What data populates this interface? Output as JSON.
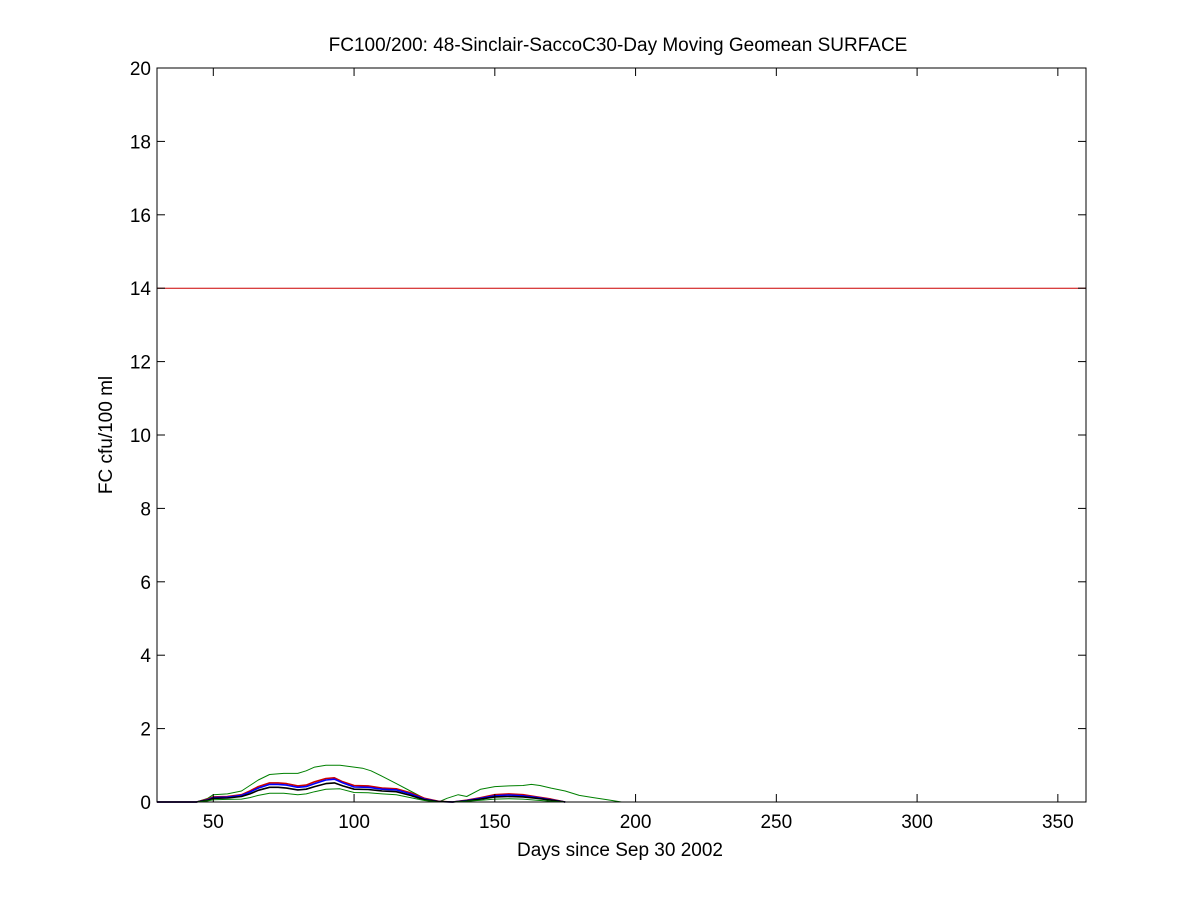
{
  "chart_data": {
    "type": "line",
    "title": "FC100/200: 48-Sinclair-SaccoC30-Day Moving Geomean SURFACE",
    "xlabel": "Days since Sep 30 2002",
    "ylabel": "FC cfu/100 ml",
    "xlim": [
      30,
      360
    ],
    "ylim": [
      0,
      20
    ],
    "xticks": [
      50,
      100,
      150,
      200,
      250,
      300,
      350
    ],
    "yticks": [
      0,
      2,
      4,
      6,
      8,
      10,
      12,
      14,
      16,
      18,
      20
    ],
    "grid": false,
    "legend": "none",
    "reference_lines": [
      {
        "y": 14,
        "color": "#cc0000"
      }
    ],
    "series": [
      {
        "color": "#008000",
        "x": [
          30,
          44,
          48,
          50,
          55,
          60,
          63,
          66,
          70,
          75,
          80,
          83,
          86,
          90,
          95,
          100,
          103,
          106,
          110,
          115,
          120,
          125,
          130,
          133,
          137,
          140,
          145,
          150,
          155,
          160,
          163,
          166,
          170,
          175,
          180,
          185,
          190,
          195
        ],
        "y": [
          0,
          0,
          0.1,
          0.2,
          0.22,
          0.3,
          0.45,
          0.6,
          0.75,
          0.78,
          0.78,
          0.85,
          0.95,
          1.0,
          1.0,
          0.95,
          0.92,
          0.85,
          0.7,
          0.5,
          0.3,
          0.1,
          0,
          0.1,
          0.2,
          0.15,
          0.35,
          0.42,
          0.44,
          0.45,
          0.48,
          0.45,
          0.38,
          0.3,
          0.18,
          0.12,
          0.06,
          0
        ]
      },
      {
        "color": "#cc0000",
        "x": [
          30,
          44,
          48,
          50,
          55,
          60,
          63,
          66,
          70,
          73,
          76,
          80,
          83,
          86,
          90,
          93,
          96,
          100,
          105,
          110,
          115,
          120,
          125,
          130,
          135,
          140,
          145,
          150,
          155,
          160,
          165,
          170,
          175
        ],
        "y": [
          0,
          0,
          0.08,
          0.14,
          0.15,
          0.2,
          0.3,
          0.42,
          0.52,
          0.52,
          0.5,
          0.44,
          0.46,
          0.55,
          0.64,
          0.66,
          0.55,
          0.45,
          0.44,
          0.38,
          0.36,
          0.25,
          0.1,
          0.02,
          0,
          0.05,
          0.12,
          0.2,
          0.22,
          0.2,
          0.14,
          0.08,
          0
        ]
      },
      {
        "color": "#0000ff",
        "x": [
          30,
          44,
          48,
          50,
          55,
          60,
          63,
          66,
          70,
          73,
          76,
          80,
          83,
          86,
          90,
          93,
          96,
          100,
          105,
          110,
          115,
          120,
          125,
          130,
          135,
          140,
          145,
          150,
          155,
          160,
          165,
          170,
          175
        ],
        "y": [
          0,
          0,
          0.06,
          0.12,
          0.13,
          0.18,
          0.27,
          0.38,
          0.48,
          0.48,
          0.46,
          0.4,
          0.42,
          0.5,
          0.6,
          0.62,
          0.52,
          0.41,
          0.4,
          0.35,
          0.33,
          0.22,
          0.08,
          0.01,
          0,
          0.04,
          0.1,
          0.17,
          0.19,
          0.17,
          0.12,
          0.06,
          0
        ]
      },
      {
        "color": "#000000",
        "x": [
          30,
          44,
          48,
          50,
          55,
          60,
          63,
          66,
          70,
          73,
          76,
          80,
          83,
          86,
          90,
          93,
          96,
          100,
          105,
          110,
          115,
          120,
          125,
          130,
          135,
          140,
          145,
          150,
          155,
          160,
          165,
          170,
          175
        ],
        "y": [
          0,
          0,
          0.05,
          0.1,
          0.11,
          0.15,
          0.22,
          0.32,
          0.4,
          0.4,
          0.38,
          0.33,
          0.35,
          0.42,
          0.5,
          0.52,
          0.44,
          0.35,
          0.34,
          0.3,
          0.28,
          0.18,
          0.06,
          0.01,
          0,
          0.03,
          0.08,
          0.14,
          0.15,
          0.14,
          0.1,
          0.05,
          0
        ]
      },
      {
        "color": "#008000",
        "x": [
          30,
          44,
          48,
          50,
          55,
          60,
          63,
          66,
          70,
          75,
          80,
          83,
          86,
          90,
          95,
          100,
          105,
          110,
          115,
          120,
          125,
          130,
          135,
          140,
          145,
          150,
          155,
          160,
          165,
          170,
          175
        ],
        "y": [
          0,
          0,
          0.03,
          0.06,
          0.07,
          0.08,
          0.12,
          0.18,
          0.24,
          0.24,
          0.2,
          0.22,
          0.28,
          0.35,
          0.36,
          0.26,
          0.25,
          0.22,
          0.2,
          0.12,
          0.04,
          0,
          0,
          0.02,
          0.05,
          0.08,
          0.09,
          0.08,
          0.05,
          0.02,
          0
        ]
      }
    ]
  }
}
